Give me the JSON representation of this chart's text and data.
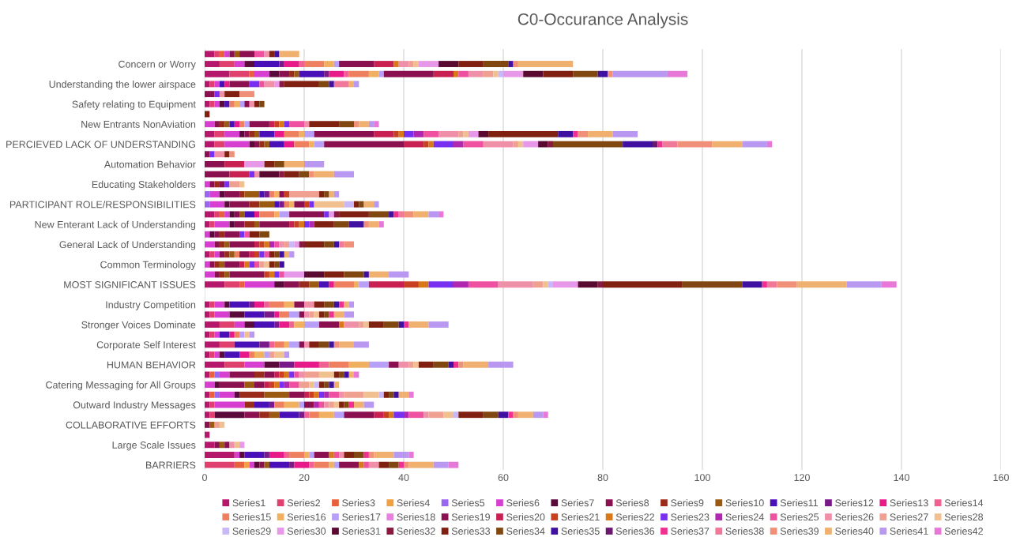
{
  "chart_data": {
    "type": "bar",
    "orientation": "horizontal",
    "stacked": true,
    "title": "C0-Occurance Analysis",
    "categories": [
      null,
      "Concern or Worry",
      null,
      "Understanding the lower airspace",
      null,
      "Safety relating to Equipment",
      null,
      "New Entrants NonAviation",
      null,
      "PERCIEVED LACK OF UNDERSTANDING",
      null,
      "Automation Behavior",
      null,
      "Educating Stakeholders",
      null,
      "PARTICIPANT ROLE/RESPONSIBILITIES",
      null,
      "New Enterant Lack of Understanding",
      null,
      "General Lack of Understanding",
      null,
      "Common Terminology",
      null,
      "MOST SIGNIFICANT ISSUES",
      null,
      "Industry Competition",
      null,
      "Stronger Voices Dominate",
      null,
      "Corporate Self Interest",
      null,
      "HUMAN BEHAVIOR",
      null,
      "Catering Messaging for All Groups",
      null,
      "Outward Industry Messages",
      null,
      "COLLABORATIVE EFFORTS",
      null,
      "Large Scale Issues",
      null,
      "BARRIERS"
    ],
    "xlim": [
      0,
      160
    ],
    "xticks": [
      0,
      20,
      40,
      60,
      80,
      100,
      120,
      140,
      160
    ],
    "grid": "x",
    "legend": "bottom",
    "series": [
      {
        "name": "Series1",
        "color": "#b5176b",
        "values": [
          2,
          3,
          5,
          1,
          null,
          1,
          null,
          null,
          2,
          2,
          null,
          null,
          null,
          null,
          null,
          null,
          2,
          1,
          null,
          null,
          1,
          null,
          null,
          4,
          null,
          1,
          1,
          3,
          1,
          3,
          1,
          4,
          1,
          null,
          1,
          1,
          1,
          null,
          1,
          2,
          6,
          null
        ]
      },
      {
        "name": "Series2",
        "color": "#e0406e",
        "values": [
          1,
          3,
          4,
          1,
          null,
          1,
          null,
          null,
          2,
          2,
          null,
          null,
          null,
          null,
          null,
          null,
          1,
          1,
          null,
          null,
          1,
          null,
          null,
          3,
          null,
          1,
          1,
          3,
          1,
          3,
          1,
          4,
          null,
          null,
          null,
          1,
          1,
          null,
          null,
          null,
          null,
          6
        ]
      },
      {
        "name": "Series3",
        "color": "#e8603c",
        "values": [
          1,
          null,
          1,
          null,
          null,
          null,
          null,
          null,
          null,
          null,
          null,
          null,
          null,
          null,
          null,
          null,
          1,
          null,
          null,
          null,
          null,
          null,
          null,
          1,
          null,
          null,
          null,
          null,
          null,
          null,
          null,
          null,
          1,
          null,
          1,
          null,
          null,
          null,
          null,
          null,
          null,
          2
        ]
      },
      {
        "name": "Series4",
        "color": "#f0a040",
        "values": [
          null,
          null,
          null,
          null,
          null,
          null,
          null,
          null,
          null,
          null,
          null,
          null,
          null,
          null,
          null,
          null,
          null,
          null,
          null,
          null,
          null,
          null,
          null,
          null,
          null,
          null,
          null,
          null,
          null,
          null,
          null,
          null,
          null,
          null,
          null,
          null,
          null,
          null,
          null,
          null,
          null,
          1
        ]
      },
      {
        "name": "Series5",
        "color": "#9966ee",
        "values": [
          null,
          null,
          null,
          null,
          null,
          null,
          null,
          null,
          null,
          null,
          null,
          null,
          null,
          null,
          1,
          1,
          null,
          null,
          null,
          null,
          null,
          null,
          null,
          null,
          null,
          null,
          null,
          null,
          null,
          null,
          null,
          null,
          1,
          null,
          1,
          null,
          null,
          null,
          null,
          null,
          null,
          null
        ]
      },
      {
        "name": "Series6",
        "color": "#d63fd0",
        "values": [
          1,
          2,
          3,
          1,
          null,
          1,
          null,
          2,
          3,
          5,
          null,
          null,
          null,
          1,
          2,
          3,
          1,
          3,
          1,
          2,
          1,
          1,
          2,
          6,
          null,
          2,
          3,
          2,
          1,
          null,
          1,
          4,
          2,
          2,
          3,
          6,
          null,
          null,
          null,
          null,
          1,
          1
        ]
      },
      {
        "name": "Series7",
        "color": "#5a0a3a",
        "values": [
          null,
          2,
          2,
          null,
          null,
          1,
          null,
          null,
          1,
          1,
          null,
          null,
          null,
          null,
          1,
          1,
          1,
          1,
          1,
          null,
          null,
          null,
          null,
          2,
          null,
          1,
          3,
          2,
          null,
          null,
          1,
          3,
          null,
          1,
          1,
          null,
          6,
          null,
          null,
          null,
          1,
          1
        ]
      },
      {
        "name": "Series8",
        "color": "#8b1050",
        "values": [
          1,
          null,
          2,
          null,
          2,
          null,
          null,
          1,
          1,
          1,
          1,
          4,
          5,
          1,
          3,
          4,
          1,
          2,
          1,
          1,
          1,
          1,
          1,
          3,
          null,
          null,
          null,
          null,
          null,
          null,
          null,
          null,
          5,
          5,
          null,
          null,
          3,
          1,
          null,
          1,
          null,
          1
        ]
      },
      {
        "name": "Series9",
        "color": "#9a2a1a",
        "values": [
          null,
          null,
          1,
          null,
          null,
          null,
          null,
          1,
          1,
          1,
          null,
          null,
          null,
          1,
          1,
          2,
          null,
          2,
          1,
          1,
          1,
          1,
          1,
          2,
          null,
          null,
          null,
          null,
          null,
          null,
          null,
          null,
          2,
          null,
          5,
          2,
          2,
          null,
          null,
          null,
          null,
          null
        ]
      },
      {
        "name": "Series10",
        "color": "#9a5a10",
        "values": [
          1,
          null,
          1,
          null,
          null,
          null,
          null,
          1,
          1,
          1,
          null,
          null,
          null,
          null,
          3,
          3,
          1,
          1,
          null,
          1,
          1,
          1,
          1,
          2,
          null,
          null,
          null,
          null,
          null,
          null,
          null,
          null,
          null,
          2,
          5,
          null,
          2,
          1,
          null,
          1,
          null,
          1
        ]
      },
      {
        "name": "Series11",
        "color": "#4a10b8",
        "values": [
          null,
          5,
          5,
          1,
          null,
          1,
          null,
          1,
          3,
          3,
          null,
          null,
          null,
          null,
          1,
          1,
          2,
          null,
          null,
          null,
          null,
          null,
          null,
          2,
          null,
          4,
          4,
          4,
          2,
          5,
          3,
          null,
          null,
          null,
          null,
          3,
          4,
          null,
          null,
          null,
          4,
          4
        ]
      },
      {
        "name": "Series12",
        "color": "#7a1a8a",
        "values": [
          null,
          1,
          1,
          null,
          null,
          null,
          null,
          null,
          null,
          null,
          null,
          null,
          null,
          null,
          1,
          1,
          null,
          null,
          null,
          null,
          null,
          null,
          null,
          null,
          null,
          1,
          2,
          1,
          null,
          2,
          null,
          3,
          null,
          null,
          null,
          1,
          1,
          null,
          null,
          null,
          1,
          1
        ]
      },
      {
        "name": "Series13",
        "color": "#e81a8a",
        "values": [
          null,
          3,
          3,
          1,
          null,
          null,
          null,
          1,
          2,
          2,
          null,
          null,
          null,
          null,
          null,
          null,
          1,
          null,
          null,
          null,
          null,
          null,
          null,
          1,
          null,
          2,
          1,
          2,
          1,
          null,
          2,
          5,
          null,
          null,
          null,
          null,
          null,
          null,
          null,
          null,
          3,
          3
        ]
      },
      {
        "name": "Series14",
        "color": "#f06090",
        "values": [
          null,
          1,
          1,
          null,
          null,
          null,
          null,
          null,
          null,
          null,
          null,
          null,
          null,
          null,
          null,
          null,
          null,
          null,
          null,
          null,
          null,
          null,
          null,
          null,
          null,
          1,
          null,
          1,
          null,
          1,
          null,
          2,
          null,
          null,
          null,
          null,
          1,
          null,
          null,
          null,
          1,
          1
        ]
      },
      {
        "name": "Series15",
        "color": "#ee8060",
        "values": [
          null,
          4,
          4,
          null,
          null,
          1,
          null,
          1,
          3,
          3,
          null,
          null,
          null,
          null,
          1,
          1,
          3,
          null,
          null,
          null,
          1,
          null,
          null,
          4,
          null,
          3,
          2,
          null,
          1,
          2,
          1,
          4,
          null,
          null,
          null,
          2,
          2,
          null,
          null,
          null,
          3,
          3
        ]
      },
      {
        "name": "Series16",
        "color": "#f0b060",
        "values": [
          null,
          2,
          2,
          null,
          null,
          1,
          null,
          null,
          1,
          1,
          null,
          null,
          null,
          null,
          1,
          1,
          1,
          null,
          null,
          null,
          null,
          null,
          null,
          1,
          null,
          2,
          null,
          2,
          null,
          1,
          2,
          4,
          null,
          null,
          null,
          3,
          3,
          null,
          null,
          null,
          1,
          1
        ]
      },
      {
        "name": "Series17",
        "color": "#b8a0f8",
        "values": [
          null,
          1,
          1,
          null,
          null,
          1,
          null,
          1,
          2,
          2,
          null,
          null,
          null,
          null,
          null,
          null,
          2,
          null,
          null,
          null,
          null,
          null,
          null,
          2,
          null,
          null,
          2,
          3,
          1,
          2,
          1,
          4,
          null,
          null,
          null,
          1,
          2,
          null,
          null,
          null,
          1,
          1
        ]
      },
      {
        "name": "Series18",
        "color": "#e880e0",
        "values": [
          null,
          null,
          null,
          null,
          null,
          null,
          null,
          null,
          null,
          null,
          null,
          null,
          null,
          null,
          null,
          null,
          null,
          null,
          null,
          null,
          null,
          null,
          null,
          null,
          null,
          null,
          null,
          null,
          null,
          null,
          null,
          null,
          null,
          null,
          null,
          null,
          null,
          null,
          null,
          null,
          null,
          null
        ]
      },
      {
        "name": "Series19",
        "color": "#8a1050",
        "values": [
          3,
          7,
          10,
          4,
          null,
          1,
          null,
          4,
          12,
          16,
          null,
          null,
          null,
          1,
          1,
          2,
          7,
          6,
          3,
          5,
          2,
          3,
          7,
          null,
          null,
          2,
          1,
          4,
          null,
          1,
          null,
          2,
          2,
          2,
          3,
          2,
          6,
          null,
          null,
          1,
          3,
          4
        ]
      },
      {
        "name": "Series20",
        "color": "#c82050",
        "values": [
          null,
          4,
          4,
          null,
          null,
          null,
          null,
          1,
          4,
          4,
          null,
          4,
          4,
          null,
          null,
          null,
          null,
          1,
          null,
          1,
          1,
          1,
          null,
          7,
          null,
          null,
          null,
          null,
          null,
          null,
          null,
          null,
          1,
          1,
          1,
          null,
          2,
          null,
          null,
          null,
          null,
          null
        ]
      },
      {
        "name": "Series21",
        "color": "#c84020",
        "values": [
          null,
          null,
          null,
          null,
          null,
          null,
          null,
          1,
          1,
          1,
          null,
          null,
          null,
          null,
          1,
          1,
          null,
          1,
          null,
          1,
          1,
          null,
          1,
          3,
          null,
          null,
          null,
          null,
          null,
          null,
          null,
          null,
          1,
          1,
          1,
          null,
          1,
          null,
          null,
          null,
          null,
          null
        ]
      },
      {
        "name": "Series22",
        "color": "#d87818",
        "values": [
          null,
          1,
          1,
          null,
          null,
          null,
          null,
          1,
          1,
          1,
          null,
          null,
          null,
          null,
          null,
          null,
          null,
          1,
          null,
          1,
          null,
          1,
          1,
          2,
          null,
          null,
          null,
          1,
          null,
          null,
          null,
          null,
          1,
          1,
          1,
          null,
          1,
          null,
          null,
          null,
          1,
          1
        ]
      },
      {
        "name": "Series23",
        "color": "#7830f0",
        "values": [
          null,
          null,
          null,
          2,
          1,
          null,
          null,
          1,
          2,
          4,
          1,
          null,
          1,
          1,
          null,
          1,
          1,
          1,
          1,
          null,
          1,
          1,
          1,
          5,
          null,
          null,
          null,
          null,
          null,
          null,
          null,
          null,
          1,
          1,
          1,
          null,
          2,
          null,
          null,
          null,
          null,
          null
        ]
      },
      {
        "name": "Series24",
        "color": "#b028b0",
        "values": [
          null,
          null,
          null,
          null,
          null,
          null,
          null,
          null,
          2,
          2,
          null,
          null,
          null,
          null,
          null,
          null,
          null,
          1,
          null,
          1,
          null,
          null,
          null,
          3,
          null,
          null,
          null,
          null,
          null,
          null,
          null,
          null,
          null,
          1,
          1,
          1,
          1,
          null,
          null,
          null,
          null,
          null
        ]
      },
      {
        "name": "Series25",
        "color": "#f050a0",
        "values": [
          2,
          null,
          2,
          1,
          null,
          null,
          null,
          3,
          3,
          4,
          null,
          null,
          null,
          null,
          null,
          null,
          null,
          null,
          1,
          1,
          1,
          1,
          1,
          6,
          null,
          null,
          null,
          null,
          null,
          null,
          null,
          null,
          1,
          2,
          2,
          1,
          3,
          null,
          null,
          null,
          1,
          1
        ]
      },
      {
        "name": "Series26",
        "color": "#f090a8",
        "values": [
          1,
          2,
          3,
          2,
          1,
          1,
          null,
          1,
          4,
          6,
          2,
          null,
          1,
          null,
          null,
          null,
          null,
          null,
          null,
          1,
          null,
          null,
          null,
          7,
          null,
          2,
          1,
          3,
          null,
          1,
          null,
          2,
          1,
          null,
          1,
          1,
          1,
          null,
          null,
          1,
          1,
          2
        ]
      },
      {
        "name": "Series27",
        "color": "#f0a090",
        "values": [
          null,
          1,
          2,
          null,
          null,
          null,
          null,
          null,
          1,
          1,
          null,
          null,
          null,
          2,
          6,
          null,
          null,
          null,
          null,
          1,
          null,
          1,
          null,
          2,
          null,
          null,
          1,
          1,
          null,
          null,
          1,
          1,
          3,
          2,
          4,
          1,
          3,
          1,
          null,
          null,
          null,
          null
        ]
      },
      {
        "name": "Series28",
        "color": "#f0c090",
        "values": [
          null,
          1,
          1,
          null,
          null,
          null,
          null,
          null,
          1,
          1,
          null,
          null,
          null,
          1,
          null,
          6,
          null,
          null,
          null,
          null,
          null,
          1,
          null,
          1,
          null,
          null,
          1,
          1,
          1,
          null,
          2,
          1,
          3,
          1,
          3,
          1,
          2,
          1,
          null,
          1,
          null,
          null
        ]
      },
      {
        "name": "Series29",
        "color": "#c8b8f8",
        "values": [
          null,
          null,
          1,
          null,
          null,
          null,
          null,
          null,
          null,
          null,
          null,
          null,
          null,
          null,
          null,
          2,
          null,
          null,
          null,
          1,
          null,
          null,
          null,
          1,
          null,
          null,
          null,
          null,
          null,
          null,
          null,
          null,
          null,
          1,
          1,
          null,
          1,
          null,
          null,
          null,
          null,
          null
        ]
      },
      {
        "name": "Series30",
        "color": "#e898e8",
        "values": [
          null,
          4,
          4,
          1,
          null,
          null,
          null,
          null,
          2,
          3,
          null,
          4,
          null,
          null,
          null,
          null,
          1,
          null,
          null,
          1,
          null,
          null,
          4,
          5,
          null,
          null,
          null,
          null,
          null,
          null,
          null,
          null,
          null,
          null,
          null,
          null,
          null,
          null,
          null,
          1,
          null,
          null
        ]
      },
      {
        "name": "Series31",
        "color": "#5a0a30",
        "values": [
          null,
          4,
          4,
          null,
          null,
          null,
          null,
          null,
          2,
          2,
          null,
          null,
          4,
          null,
          null,
          null,
          null,
          null,
          null,
          null,
          null,
          null,
          4,
          4,
          null,
          null,
          null,
          null,
          null,
          null,
          null,
          null,
          null,
          null,
          null,
          null,
          null,
          null,
          null,
          null,
          null,
          null
        ]
      },
      {
        "name": "Series32",
        "color": "#8a1840",
        "values": [
          null,
          null,
          null,
          1,
          null,
          null,
          null,
          null,
          null,
          1,
          null,
          null,
          1,
          null,
          null,
          null,
          1,
          null,
          null,
          1,
          null,
          null,
          null,
          1,
          null,
          null,
          null,
          null,
          null,
          null,
          null,
          null,
          null,
          null,
          null,
          null,
          null,
          null,
          null,
          null,
          null,
          null
        ]
      },
      {
        "name": "Series33",
        "color": "#802010",
        "values": [
          1,
          5,
          6,
          7,
          3,
          1,
          1,
          6,
          14,
          null,
          1,
          2,
          3,
          null,
          1,
          1,
          6,
          4,
          2,
          4,
          1,
          1,
          4,
          16,
          null,
          2,
          1,
          3,
          null,
          2,
          null,
          3,
          1,
          1,
          1,
          1,
          5,
          null,
          null,
          null,
          2,
          2
        ]
      },
      {
        "name": "Series34",
        "color": "#804810",
        "values": [
          null,
          5,
          5,
          2,
          null,
          1,
          null,
          3,
          null,
          14,
          null,
          2,
          2,
          null,
          1,
          1,
          4,
          3,
          2,
          2,
          1,
          1,
          4,
          12,
          null,
          2,
          1,
          3,
          null,
          2,
          null,
          3,
          1,
          1,
          1,
          1,
          3,
          null,
          null,
          null,
          2,
          2
        ]
      },
      {
        "name": "Series35",
        "color": "#4010a0",
        "values": [
          1,
          1,
          2,
          1,
          null,
          null,
          null,
          null,
          3,
          6,
          null,
          null,
          null,
          null,
          null,
          null,
          1,
          3,
          null,
          1,
          1,
          1,
          1,
          4,
          null,
          1,
          null,
          1,
          null,
          1,
          null,
          1,
          1,
          1,
          1,
          null,
          2,
          null,
          null,
          null,
          null,
          null
        ]
      },
      {
        "name": "Series36",
        "color": "#6a1870",
        "values": [
          null,
          null,
          null,
          null,
          null,
          null,
          null,
          null,
          null,
          1,
          null,
          null,
          null,
          null,
          null,
          null,
          null,
          null,
          null,
          null,
          null,
          null,
          null,
          null,
          null,
          null,
          null,
          null,
          null,
          null,
          null,
          null,
          null,
          null,
          null,
          null,
          null,
          null,
          null,
          null,
          null,
          null
        ]
      },
      {
        "name": "Series37",
        "color": "#f03090",
        "values": [
          null,
          null,
          null,
          null,
          null,
          null,
          null,
          null,
          1,
          1,
          null,
          null,
          null,
          null,
          null,
          null,
          1,
          null,
          null,
          null,
          null,
          null,
          null,
          1,
          null,
          1,
          1,
          1,
          null,
          null,
          null,
          1,
          null,
          null,
          null,
          1,
          1,
          null,
          null,
          null,
          1,
          1
        ]
      },
      {
        "name": "Series38",
        "color": "#f07898",
        "values": [
          null,
          null,
          null,
          3,
          null,
          null,
          null,
          null,
          null,
          3,
          null,
          null,
          null,
          null,
          null,
          null,
          1,
          null,
          null,
          1,
          null,
          null,
          null,
          2,
          null,
          null,
          null,
          null,
          null,
          null,
          null,
          null,
          null,
          null,
          null,
          null,
          null,
          null,
          null,
          null,
          null,
          null
        ]
      },
      {
        "name": "Series39",
        "color": "#f09078",
        "values": [
          null,
          1,
          1,
          null,
          3,
          null,
          null,
          1,
          2,
          7,
          1,
          null,
          1,
          null,
          null,
          null,
          2,
          1,
          null,
          2,
          null,
          null,
          null,
          4,
          null,
          null,
          null,
          null,
          null,
          1,
          null,
          1,
          null,
          null,
          null,
          null,
          1,
          null,
          null,
          null,
          1,
          1
        ]
      },
      {
        "name": "Series40",
        "color": "#f0b070",
        "values": [
          4,
          11,
          null,
          1,
          null,
          null,
          null,
          2,
          5,
          6,
          null,
          4,
          4,
          null,
          1,
          2,
          3,
          2,
          null,
          null,
          1,
          null,
          4,
          10,
          null,
          1,
          2,
          4,
          null,
          3,
          null,
          5,
          1,
          1,
          2,
          2,
          3,
          null,
          null,
          null,
          4,
          5
        ]
      },
      {
        "name": "Series41",
        "color": "#b898f0",
        "values": [
          null,
          null,
          11,
          1,
          null,
          null,
          null,
          1,
          5,
          5,
          null,
          4,
          4,
          null,
          1,
          1,
          2,
          null,
          null,
          null,
          1,
          null,
          4,
          7,
          null,
          1,
          2,
          4,
          1,
          3,
          1,
          5,
          null,
          null,
          null,
          2,
          2,
          null,
          null,
          null,
          3,
          3
        ]
      },
      {
        "name": "Series42",
        "color": "#e878d8",
        "values": [
          null,
          null,
          4,
          null,
          null,
          null,
          null,
          1,
          null,
          1,
          null,
          null,
          null,
          null,
          null,
          null,
          1,
          1,
          null,
          null,
          null,
          null,
          null,
          3,
          null,
          null,
          null,
          null,
          null,
          null,
          null,
          null,
          1,
          null,
          1,
          null,
          1,
          null,
          null,
          null,
          1,
          2
        ]
      }
    ]
  }
}
